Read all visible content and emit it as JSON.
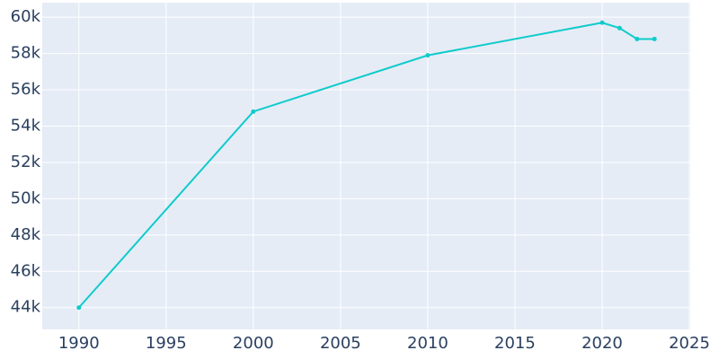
{
  "chart_data": {
    "type": "line",
    "x": [
      1990,
      2000,
      2010,
      2020,
      2021,
      2022,
      2023
    ],
    "series": [
      {
        "color": "#0fcbcb",
        "values": [
          44000,
          54800,
          57900,
          59700,
          59400,
          58800,
          58800
        ]
      }
    ],
    "xlim": [
      1987.9,
      2025.05
    ],
    "xticks": [
      1990,
      1995,
      2000,
      2005,
      2010,
      2015,
      2020,
      2025
    ],
    "ylim": [
      42800,
      60800
    ],
    "yticks": [
      {
        "value": 44000,
        "label": "44k"
      },
      {
        "value": 46000,
        "label": "46k"
      },
      {
        "value": 48000,
        "label": "48k"
      },
      {
        "value": 50000,
        "label": "50k"
      },
      {
        "value": 52000,
        "label": "52k"
      },
      {
        "value": 54000,
        "label": "54k"
      },
      {
        "value": 56000,
        "label": "56k"
      },
      {
        "value": 58000,
        "label": "58k"
      },
      {
        "value": 60000,
        "label": "60k"
      }
    ],
    "grid": true,
    "background": "#e5ecf6"
  }
}
